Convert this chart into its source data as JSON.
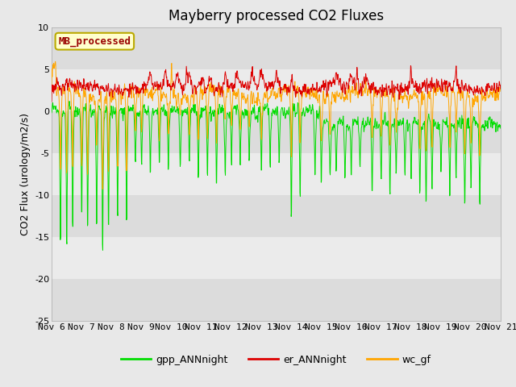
{
  "title": "Mayberry processed CO2 Fluxes",
  "ylabel": "CO2 Flux (urology/m2/s)",
  "ylim": [
    -25,
    10
  ],
  "yticks": [
    -25,
    -20,
    -15,
    -10,
    -5,
    0,
    5,
    10
  ],
  "n_days": 15,
  "xtick_labels": [
    "Nov 6",
    "Nov 7",
    "Nov 8",
    "Nov 9",
    "Nov 10",
    "Nov 11",
    "Nov 12",
    "Nov 13",
    "Nov 14",
    "Nov 15",
    "Nov 16",
    "Nov 17",
    "Nov 18",
    "Nov 19",
    "Nov 20",
    "Nov 21"
  ],
  "colors": {
    "gpp_ANNnight": "#00DD00",
    "er_ANNnight": "#DD0000",
    "wc_gf": "#FFA500"
  },
  "inset_label": "MB_processed",
  "inset_bg": "#FFFFCC",
  "inset_border": "#BBAA00",
  "inset_text_color": "#990000",
  "fig_bg": "#E8E8E8",
  "band_colors": [
    "#DCDCDC",
    "#EBEBEB"
  ],
  "title_fontsize": 12,
  "axis_fontsize": 9,
  "tick_fontsize": 8
}
